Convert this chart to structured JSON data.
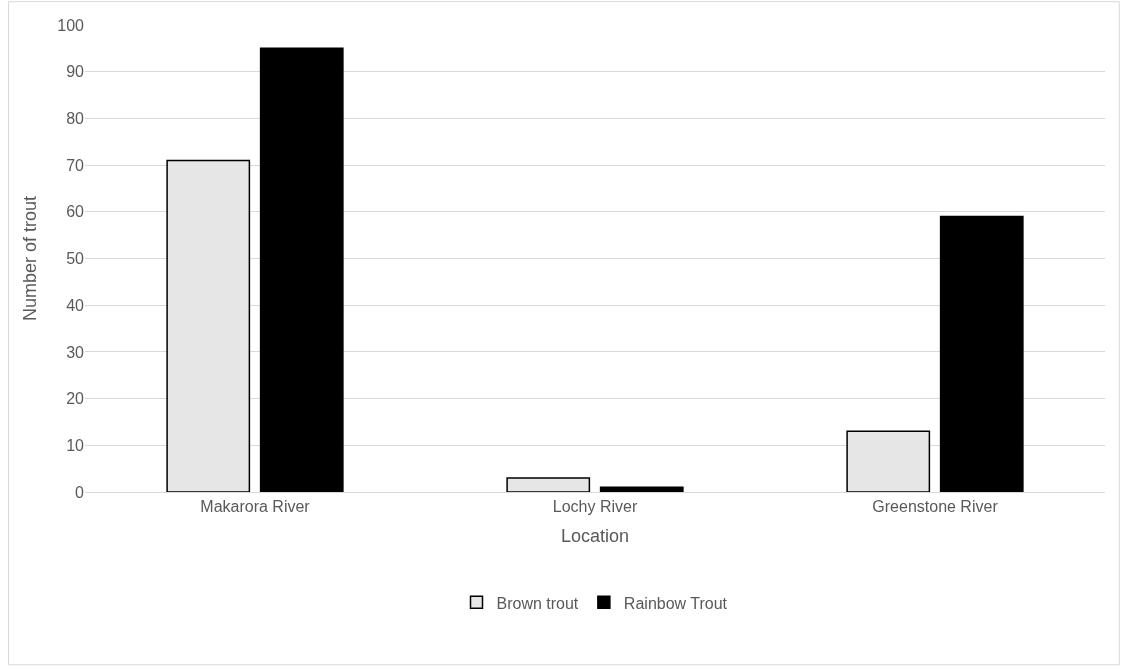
{
  "chart_data": {
    "type": "bar",
    "xlabel": "Location",
    "ylabel": "Number of trout",
    "categories": [
      "Makarora River",
      "Lochy River",
      "Greenstone River"
    ],
    "series": [
      {
        "name": "Brown trout",
        "color": "#e7e6e6",
        "values": [
          71,
          3,
          13
        ]
      },
      {
        "name": "Rainbow Trout",
        "color": "#000000",
        "values": [
          95,
          1,
          59
        ]
      }
    ],
    "ylim": [
      0,
      100
    ],
    "yticks": [
      0,
      10,
      20,
      30,
      40,
      50,
      60,
      70,
      80,
      90,
      100
    ],
    "grid": "y",
    "legend": "bottom"
  }
}
